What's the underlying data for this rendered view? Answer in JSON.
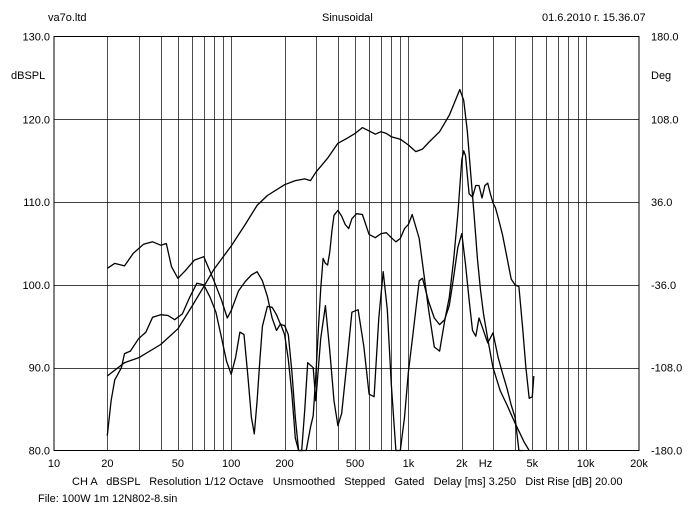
{
  "header": {
    "company": "va7o.ltd",
    "mode": "Sinusoidal",
    "timestamp": "01.6.2010 г. 15.36.07"
  },
  "footer": {
    "settings": "CH A   dBSPL   Resolution 1/12 Octave   Unsmoothed   Stepped   Gated   Delay [ms] 3.250   Dist Rise [dB] 20.00",
    "file": "File: 100W 1m 12N802-8.sin"
  },
  "chart_data": {
    "type": "line",
    "title": "Sinusoidal",
    "x_scale": "log",
    "xlim": [
      10,
      20000
    ],
    "x_ticks": [
      10,
      20,
      50,
      100,
      200,
      500,
      1000,
      2000,
      5000,
      10000,
      20000
    ],
    "x_tick_labels": [
      "10",
      "20",
      "50",
      "100",
      "200",
      "500",
      "1k",
      "2k",
      "5k",
      "10k",
      "20k"
    ],
    "x_unit_label": "Hz",
    "y_left": {
      "label": "dBSPL",
      "lim": [
        80,
        130
      ],
      "ticks": [
        80,
        90,
        100,
        110,
        120,
        130
      ],
      "tick_labels": [
        "80.0",
        "90.0",
        "100.0",
        "110.0",
        "120.0",
        "130.0"
      ]
    },
    "y_right": {
      "label": "Deg",
      "lim": [
        -180,
        180
      ],
      "ticks": [
        -180,
        -108,
        -36,
        36,
        108,
        180
      ],
      "tick_labels": [
        "-180.0",
        "-108.0",
        "-36.0",
        "36.0",
        "108.0",
        "180.0"
      ]
    },
    "grid": true,
    "line_color": "#000000",
    "series": [
      {
        "axis": "left",
        "points": [
          [
            20,
            89
          ],
          [
            25,
            90.6
          ],
          [
            30,
            91.2
          ],
          [
            40,
            92.8
          ],
          [
            50,
            94.7
          ],
          [
            60,
            97.4
          ],
          [
            70,
            99.8
          ],
          [
            80,
            101.9
          ],
          [
            100,
            104.7
          ],
          [
            120,
            107.3
          ],
          [
            140,
            109.6
          ],
          [
            160,
            110.8
          ],
          [
            200,
            112.1
          ],
          [
            230,
            112.6
          ],
          [
            260,
            112.8
          ],
          [
            280,
            112.6
          ],
          [
            300,
            113.6
          ],
          [
            350,
            115.3
          ],
          [
            400,
            117.1
          ],
          [
            450,
            117.7
          ],
          [
            500,
            118.3
          ],
          [
            550,
            119
          ],
          [
            600,
            118.6
          ],
          [
            650,
            118.2
          ],
          [
            700,
            118.5
          ],
          [
            750,
            118.3
          ],
          [
            800,
            117.9
          ],
          [
            900,
            117.6
          ],
          [
            1000,
            116.9
          ],
          [
            1100,
            116.1
          ],
          [
            1200,
            116.4
          ],
          [
            1300,
            117.2
          ],
          [
            1500,
            118.5
          ],
          [
            1700,
            120.5
          ],
          [
            1850,
            122.4
          ],
          [
            1950,
            123.6
          ],
          [
            2050,
            122.3
          ],
          [
            2150,
            118.6
          ],
          [
            2250,
            113.3
          ],
          [
            2350,
            108.3
          ],
          [
            2450,
            103.2
          ],
          [
            2550,
            99.4
          ],
          [
            2650,
            96.6
          ],
          [
            2800,
            93.5
          ],
          [
            3000,
            90
          ],
          [
            3300,
            87.2
          ],
          [
            3600,
            85.5
          ],
          [
            4000,
            83.3
          ],
          [
            4500,
            81
          ],
          [
            4800,
            80
          ]
        ]
      },
      {
        "axis": "left",
        "points": [
          [
            20,
            102
          ],
          [
            22,
            102.6
          ],
          [
            25,
            102.3
          ],
          [
            28,
            103.8
          ],
          [
            32,
            104.9
          ],
          [
            36,
            105.2
          ],
          [
            40,
            104.8
          ],
          [
            43,
            105
          ],
          [
            46,
            102.2
          ],
          [
            50,
            100.8
          ],
          [
            55,
            101.7
          ],
          [
            62,
            103
          ],
          [
            70,
            103.4
          ],
          [
            80,
            100.5
          ],
          [
            88,
            98.2
          ],
          [
            95,
            96
          ],
          [
            100,
            96.9
          ],
          [
            110,
            99.3
          ],
          [
            120,
            100.4
          ],
          [
            130,
            101.2
          ],
          [
            140,
            101.6
          ],
          [
            150,
            100.5
          ],
          [
            160,
            98.6
          ],
          [
            170,
            96
          ],
          [
            180,
            94.5
          ],
          [
            190,
            95.3
          ],
          [
            200,
            94
          ],
          [
            210,
            91
          ],
          [
            220,
            86.8
          ],
          [
            230,
            81.5
          ],
          [
            240,
            80
          ],
          [
            265,
            80
          ],
          [
            280,
            82.8
          ],
          [
            290,
            84.2
          ],
          [
            300,
            89
          ],
          [
            310,
            94.5
          ],
          [
            320,
            99.5
          ],
          [
            330,
            103.2
          ],
          [
            340,
            102.6
          ],
          [
            350,
            102.4
          ],
          [
            360,
            104
          ],
          [
            370,
            106.5
          ],
          [
            380,
            108.4
          ],
          [
            400,
            109
          ],
          [
            420,
            108.3
          ],
          [
            440,
            107.3
          ],
          [
            460,
            106.8
          ],
          [
            480,
            108
          ],
          [
            510,
            108.6
          ],
          [
            550,
            108.5
          ],
          [
            600,
            106.1
          ],
          [
            650,
            105.7
          ],
          [
            700,
            106.2
          ],
          [
            750,
            106.3
          ],
          [
            800,
            105.7
          ],
          [
            850,
            105.2
          ],
          [
            900,
            105.6
          ],
          [
            950,
            106.8
          ],
          [
            1000,
            107.3
          ],
          [
            1050,
            108.5
          ],
          [
            1150,
            105.6
          ],
          [
            1300,
            97
          ],
          [
            1400,
            92.5
          ],
          [
            1500,
            92
          ],
          [
            1600,
            95.6
          ],
          [
            1700,
            98.5
          ],
          [
            1800,
            103.1
          ],
          [
            1900,
            108.5
          ],
          [
            2000,
            115.1
          ],
          [
            2050,
            116.2
          ],
          [
            2100,
            115.6
          ],
          [
            2200,
            111
          ],
          [
            2300,
            110.6
          ],
          [
            2400,
            112
          ],
          [
            2500,
            112
          ],
          [
            2600,
            110.5
          ],
          [
            2700,
            112
          ],
          [
            2800,
            112.3
          ],
          [
            2900,
            111
          ],
          [
            3000,
            109.9
          ],
          [
            3100,
            109.3
          ],
          [
            3200,
            108.2
          ],
          [
            3400,
            106
          ],
          [
            3600,
            103.3
          ],
          [
            3800,
            100.7
          ],
          [
            4000,
            100
          ],
          [
            4200,
            99.8
          ],
          [
            4400,
            95
          ],
          [
            4600,
            90
          ],
          [
            4800,
            86.3
          ],
          [
            5000,
            86.5
          ],
          [
            5100,
            89
          ]
        ]
      },
      {
        "axis": "left",
        "points": [
          [
            20,
            81.8
          ],
          [
            21,
            86
          ],
          [
            22,
            88.5
          ],
          [
            24,
            90
          ],
          [
            25,
            91.7
          ],
          [
            27,
            92
          ],
          [
            30,
            93.5
          ],
          [
            33,
            94.3
          ],
          [
            36,
            96.1
          ],
          [
            40,
            96.4
          ],
          [
            44,
            96.3
          ],
          [
            48,
            95.8
          ],
          [
            53,
            96.5
          ],
          [
            58,
            98.4
          ],
          [
            64,
            100.2
          ],
          [
            70,
            100
          ],
          [
            76,
            98.5
          ],
          [
            82,
            96.7
          ],
          [
            88,
            93.7
          ],
          [
            94,
            90.8
          ],
          [
            100,
            89.2
          ],
          [
            106,
            91.3
          ],
          [
            112,
            94.3
          ],
          [
            118,
            94
          ],
          [
            124,
            89.1
          ],
          [
            130,
            84
          ],
          [
            135,
            82
          ],
          [
            140,
            86
          ],
          [
            145,
            90.8
          ],
          [
            150,
            95
          ],
          [
            160,
            97.4
          ],
          [
            170,
            97.3
          ],
          [
            180,
            96.4
          ],
          [
            190,
            95.2
          ],
          [
            200,
            95.1
          ],
          [
            210,
            94
          ],
          [
            220,
            89.5
          ],
          [
            230,
            84
          ],
          [
            240,
            80
          ],
          [
            250,
            80
          ],
          [
            260,
            85
          ],
          [
            270,
            90.6
          ],
          [
            290,
            90
          ],
          [
            300,
            86
          ],
          [
            320,
            93.5
          ],
          [
            340,
            97.5
          ],
          [
            360,
            92
          ],
          [
            380,
            86
          ],
          [
            400,
            83
          ],
          [
            420,
            84.5
          ],
          [
            450,
            90.7
          ],
          [
            480,
            96.7
          ],
          [
            520,
            97
          ],
          [
            560,
            92.6
          ],
          [
            600,
            86.8
          ],
          [
            640,
            86.5
          ],
          [
            680,
            96
          ],
          [
            720,
            101.6
          ],
          [
            760,
            97
          ],
          [
            800,
            88
          ],
          [
            850,
            80
          ],
          [
            900,
            80
          ],
          [
            950,
            84
          ],
          [
            1000,
            89.5
          ],
          [
            1050,
            93.3
          ],
          [
            1100,
            97
          ],
          [
            1150,
            100.5
          ],
          [
            1200,
            100.8
          ],
          [
            1300,
            98
          ],
          [
            1400,
            96
          ],
          [
            1500,
            95.2
          ],
          [
            1600,
            95.8
          ],
          [
            1700,
            97.5
          ],
          [
            1800,
            101
          ],
          [
            1900,
            104.5
          ],
          [
            2000,
            106.2
          ],
          [
            2100,
            102.5
          ],
          [
            2200,
            98.2
          ],
          [
            2300,
            94.5
          ],
          [
            2400,
            93.8
          ],
          [
            2500,
            96
          ],
          [
            2600,
            95
          ],
          [
            2800,
            93
          ],
          [
            3000,
            94.2
          ],
          [
            3200,
            91.3
          ],
          [
            3400,
            89.3
          ],
          [
            3600,
            87.5
          ],
          [
            3800,
            85.5
          ],
          [
            4000,
            84
          ],
          [
            4200,
            80
          ],
          [
            4400,
            80
          ]
        ]
      }
    ]
  }
}
